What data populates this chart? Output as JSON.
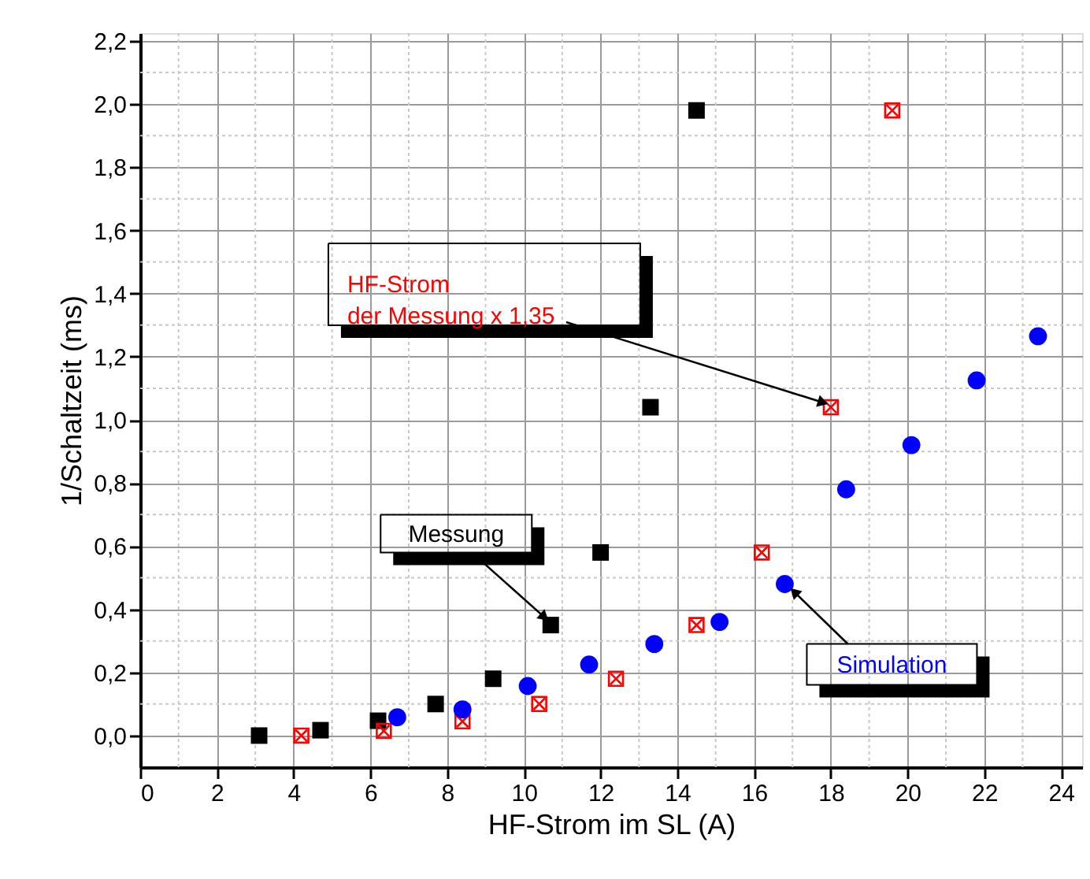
{
  "chart_data": {
    "type": "scatter",
    "xlabel": "HF-Strom im SL (A)",
    "ylabel": "1/Schaltzeit (ms)",
    "xlim": [
      0,
      24.55
    ],
    "ylim": [
      -0.1,
      2.225
    ],
    "xticks": [
      0,
      {
        "value": 1,
        "label": null
      },
      2,
      {
        "value": 3,
        "label": null
      },
      4,
      {
        "value": 5,
        "label": null
      },
      6,
      {
        "value": 7,
        "label": null
      },
      8,
      {
        "value": 9,
        "label": null
      },
      10,
      {
        "value": 11,
        "label": null
      },
      12,
      {
        "value": 13,
        "label": null
      },
      14,
      {
        "value": 15,
        "label": null
      },
      16,
      {
        "value": 17,
        "label": null
      },
      18,
      {
        "value": 19,
        "label": null
      },
      20,
      {
        "value": 21,
        "label": null
      },
      22,
      {
        "value": 23,
        "label": null
      },
      24
    ],
    "yticks": [
      {
        "value": 0,
        "label": "0,0"
      },
      {
        "value": 0.1,
        "label": null
      },
      {
        "value": 0.2,
        "label": "0,2"
      },
      {
        "value": 0.3,
        "label": null
      },
      {
        "value": 0.4,
        "label": "0,4"
      },
      {
        "value": 0.5,
        "label": null
      },
      {
        "value": 0.6,
        "label": "0,6"
      },
      {
        "value": 0.7,
        "label": null
      },
      {
        "value": 0.8,
        "label": "0,8"
      },
      {
        "value": 0.9,
        "label": null
      },
      {
        "value": 1.0,
        "label": "1,0"
      },
      {
        "value": 1.1,
        "label": null
      },
      {
        "value": 1.2,
        "label": "1,2"
      },
      {
        "value": 1.3,
        "label": null
      },
      {
        "value": 1.4,
        "label": "1,4"
      },
      {
        "value": 1.5,
        "label": null
      },
      {
        "value": 1.6,
        "label": "1,6"
      },
      {
        "value": 1.7,
        "label": null
      },
      {
        "value": 1.8,
        "label": "1,8"
      },
      {
        "value": 1.9,
        "label": null
      },
      {
        "value": 2.0,
        "label": "2,0"
      },
      {
        "value": 2.1,
        "label": null
      },
      {
        "value": 2.2,
        "label": "2,2"
      }
    ],
    "grid": true,
    "series": [
      {
        "color": "#000000",
        "marker": "square",
        "x": [
          3.1,
          4.7,
          6.2,
          7.7,
          9.2,
          10.7,
          12.0,
          13.3,
          14.5
        ],
        "values": [
          0.0,
          0.017,
          0.047,
          0.1,
          0.18,
          0.35,
          0.58,
          1.04,
          1.98
        ]
      },
      {
        "color": "#ff0000",
        "marker": "cross",
        "x": [
          4.2,
          6.35,
          8.4,
          10.4,
          12.4,
          14.5,
          16.2,
          18.0,
          19.6
        ],
        "values": [
          0.0,
          0.015,
          0.045,
          0.1,
          0.18,
          0.35,
          0.58,
          1.04,
          1.98
        ]
      },
      {
        "color": "#0000ff",
        "marker": "circle",
        "x": [
          6.7,
          8.4,
          10.1,
          11.7,
          13.4,
          15.1,
          16.8,
          18.4,
          20.1,
          21.8,
          23.4
        ],
        "values": [
          0.058,
          0.083,
          0.157,
          0.225,
          0.29,
          0.36,
          0.48,
          0.78,
          0.92,
          1.125,
          1.265
        ]
      }
    ],
    "annotations": [
      {
        "text": "HF-Strom\nder Messung x 1,35",
        "x": 18.0,
        "y": 1.04
      },
      {
        "text": "Messung",
        "x": 10.7,
        "y": 0.35
      },
      {
        "text": "Simulation",
        "x": 16.8,
        "y": 0.48
      }
    ]
  }
}
